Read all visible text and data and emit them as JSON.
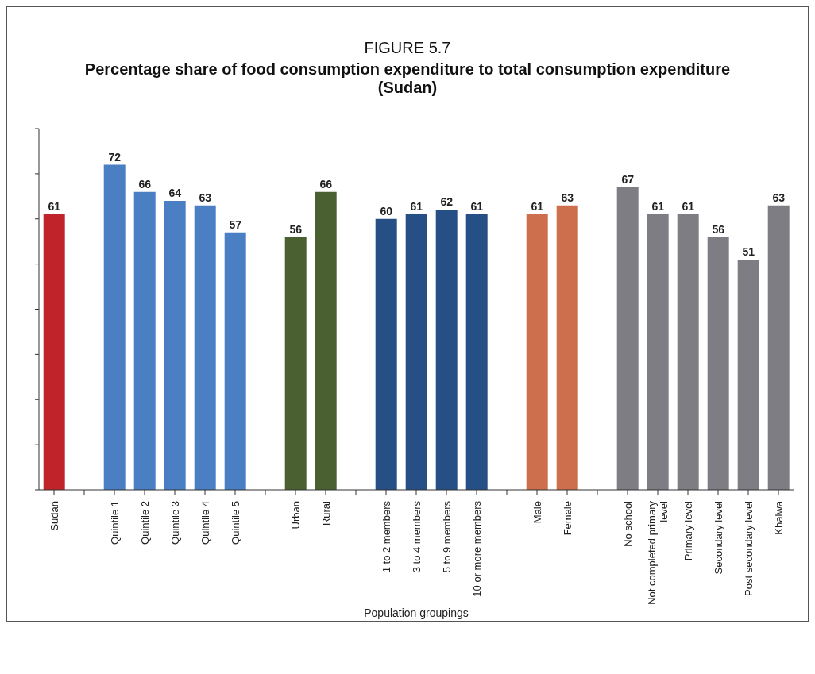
{
  "chart_data": {
    "type": "bar",
    "title": "FIGURE 5.7",
    "subtitle": "Percentage share of food consumption expenditure to total consumption expenditure (Sudan)",
    "xlabel": "Population groupings",
    "categories": [
      "Sudan",
      null,
      "Quintile 1",
      "Quintile 2",
      "Quintile 3",
      "Quintile 4",
      "Quintile 5",
      null,
      "Urban",
      "Rural",
      null,
      "1 to 2 members",
      "3 to 4 members",
      "5 to 9 members",
      "10 or more members",
      null,
      "Male",
      "Female",
      null,
      "No school",
      "Not completed primary level",
      "Primary level",
      "Secondary level",
      "Post secondary level",
      "Khalwa"
    ],
    "values": [
      61,
      null,
      72,
      66,
      64,
      63,
      57,
      null,
      56,
      66,
      null,
      60,
      61,
      62,
      61,
      null,
      61,
      63,
      null,
      67,
      61,
      61,
      56,
      51,
      63
    ],
    "colors": [
      "#c0232a",
      null,
      "#4a7fc4",
      "#4a7fc4",
      "#4a7fc4",
      "#4a7fc4",
      "#4a7fc4",
      null,
      "#4a6030",
      "#4a6030",
      null,
      "#264f86",
      "#264f86",
      "#264f86",
      "#264f86",
      null,
      "#cd6e4c",
      "#cd6e4c",
      null,
      "#7e7d84",
      "#7e7d84",
      "#7e7d84",
      "#7e7d84",
      "#7e7d84",
      "#7e7d84"
    ],
    "ylim": [
      0,
      80
    ],
    "yticks": [
      {
        "value": 0,
        "label": null
      },
      {
        "value": 10,
        "label": null
      },
      {
        "value": 20,
        "label": null
      },
      {
        "value": 30,
        "label": null
      },
      {
        "value": 40,
        "label": null
      },
      {
        "value": 50,
        "label": null
      },
      {
        "value": 60,
        "label": null
      },
      {
        "value": 70,
        "label": null
      },
      {
        "value": 80,
        "label": null
      }
    ],
    "tick_labels": "x",
    "data_labels": true
  }
}
